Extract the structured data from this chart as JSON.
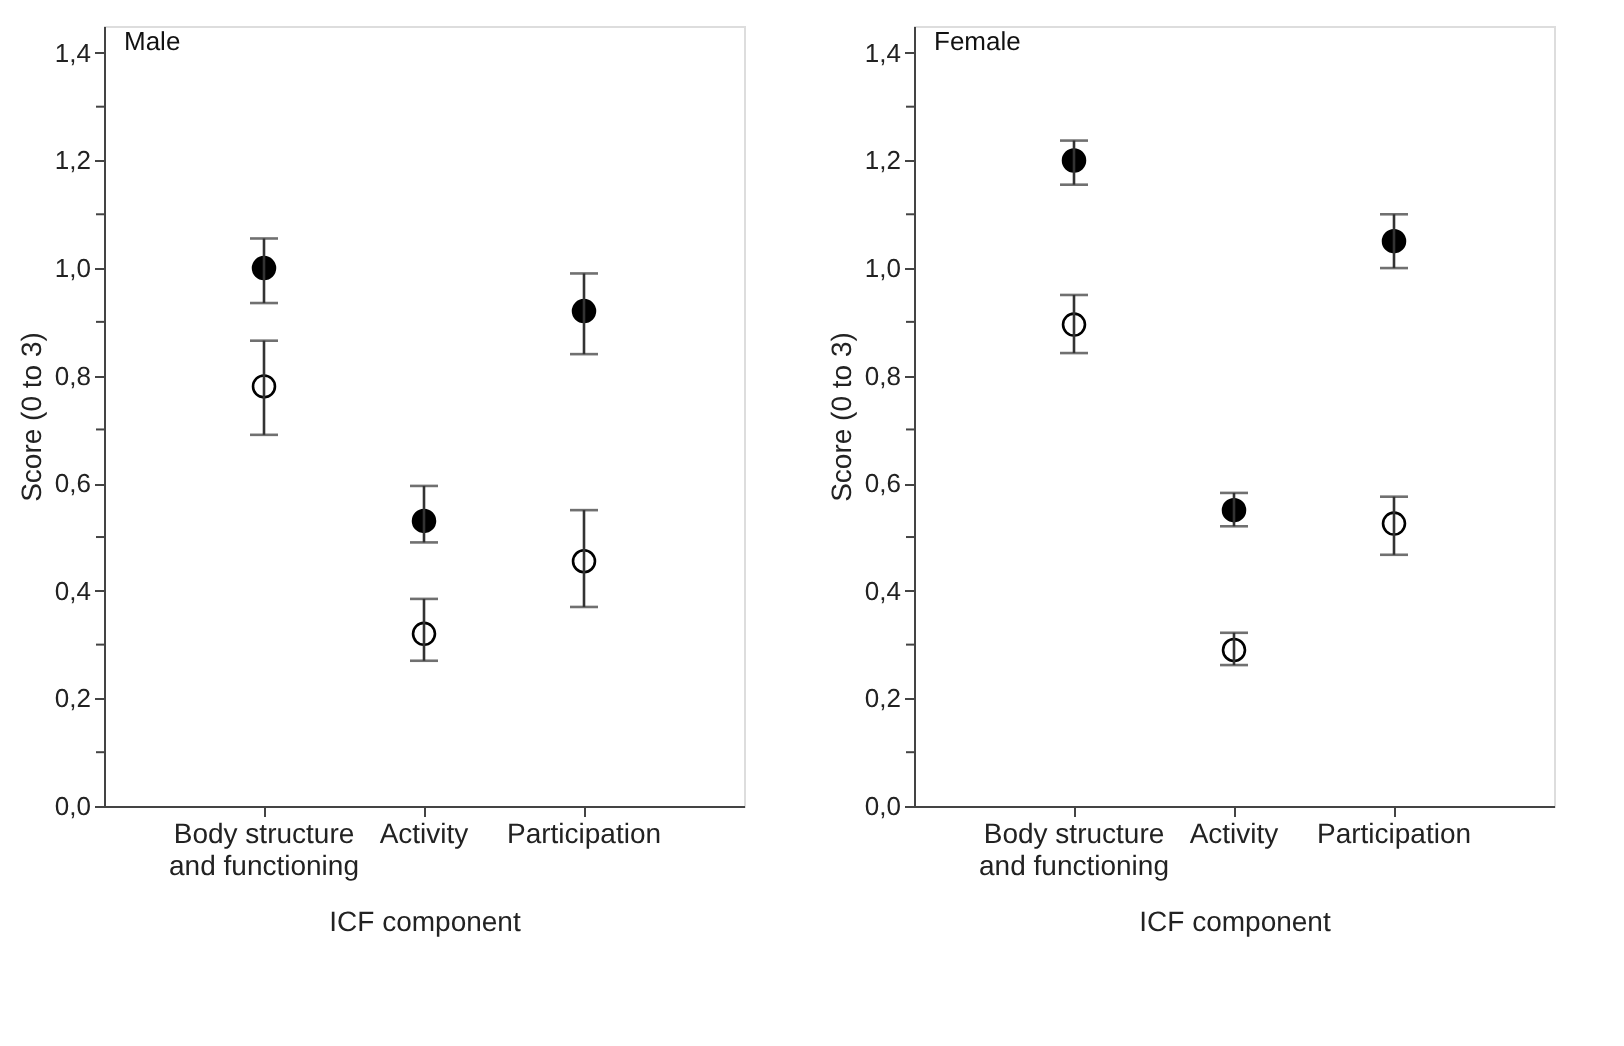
{
  "chart_data": [
    {
      "type": "scatter",
      "title": "Male",
      "xlabel": "ICF component",
      "ylabel": "Score (0 to 3)",
      "categories": [
        "Body structure and functioning",
        "Activity",
        "Participation"
      ],
      "series": [
        {
          "color": "#000000",
          "values": [
            1.0,
            0.53,
            0.92
          ],
          "errors": [
            [
              0.935,
              1.055
            ],
            [
              0.49,
              0.595
            ],
            [
              0.84,
              0.99
            ]
          ]
        },
        {
          "color": "#ffffff",
          "values": [
            0.78,
            0.32,
            0.455
          ],
          "errors": [
            [
              0.69,
              0.865
            ],
            [
              0.27,
              0.385
            ],
            [
              0.37,
              0.55
            ]
          ]
        }
      ],
      "ylim": [
        0,
        1.45
      ],
      "yticks": [
        {
          "value": 0,
          "label": "0,0"
        },
        {
          "value": 0.1,
          "label": null
        },
        {
          "value": 0.2,
          "label": "0,2"
        },
        {
          "value": 0.3,
          "label": null
        },
        {
          "value": 0.4,
          "label": "0,4"
        },
        {
          "value": 0.5,
          "label": null
        },
        {
          "value": 0.6,
          "label": "0,6"
        },
        {
          "value": 0.7,
          "label": null
        },
        {
          "value": 0.8,
          "label": "0,8"
        },
        {
          "value": 0.9,
          "label": null
        },
        {
          "value": 1.0,
          "label": "1,0"
        },
        {
          "value": 1.1,
          "label": null
        },
        {
          "value": 1.2,
          "label": "1,2"
        },
        {
          "value": 1.3,
          "label": null
        },
        {
          "value": 1.4,
          "label": "1,4"
        }
      ],
      "marker": "circle",
      "grid": false,
      "legend": false
    },
    {
      "type": "scatter",
      "title": "Female",
      "xlabel": "ICF component",
      "ylabel": "Score (0 to 3)",
      "categories": [
        "Body structure and functioning",
        "Activity",
        "Participation"
      ],
      "series": [
        {
          "color": "#000000",
          "values": [
            1.2,
            0.55,
            1.05
          ],
          "errors": [
            [
              1.155,
              1.237
            ],
            [
              0.52,
              0.582
            ],
            [
              1.0,
              1.1
            ]
          ]
        },
        {
          "color": "#ffffff",
          "values": [
            0.895,
            0.29,
            0.525
          ],
          "errors": [
            [
              0.842,
              0.95
            ],
            [
              0.262,
              0.322
            ],
            [
              0.467,
              0.575
            ]
          ]
        }
      ],
      "ylim": [
        0,
        1.45
      ],
      "yticks": [
        {
          "value": 0,
          "label": "0,0"
        },
        {
          "value": 0.1,
          "label": null
        },
        {
          "value": 0.2,
          "label": "0,2"
        },
        {
          "value": 0.3,
          "label": null
        },
        {
          "value": 0.4,
          "label": "0,4"
        },
        {
          "value": 0.5,
          "label": null
        },
        {
          "value": 0.6,
          "label": "0,6"
        },
        {
          "value": 0.7,
          "label": null
        },
        {
          "value": 0.8,
          "label": "0,8"
        },
        {
          "value": 0.9,
          "label": null
        },
        {
          "value": 1.0,
          "label": "1,0"
        },
        {
          "value": 1.1,
          "label": null
        },
        {
          "value": 1.2,
          "label": "1,2"
        },
        {
          "value": 1.3,
          "label": null
        },
        {
          "value": 1.4,
          "label": "1,4"
        }
      ],
      "marker": "circle",
      "grid": false,
      "legend": false
    }
  ]
}
